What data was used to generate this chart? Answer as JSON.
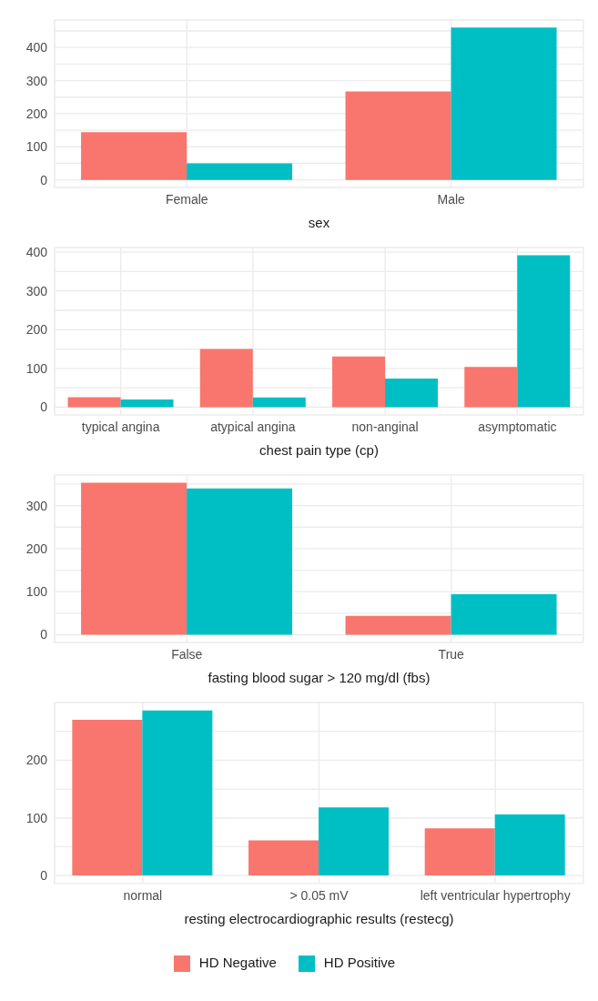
{
  "chart_data": [
    {
      "type": "bar",
      "xlabel": "sex",
      "categories": [
        "Female",
        "Male"
      ],
      "series": [
        {
          "color": "#f8766d",
          "values": [
            144,
            267
          ]
        },
        {
          "color": "#00bfc4",
          "values": [
            50,
            460
          ]
        }
      ],
      "ylim": [
        -23,
        483
      ],
      "yticks": [
        0,
        {
          "value": 50,
          "label": null
        },
        100,
        {
          "value": 150,
          "label": null
        },
        200,
        {
          "value": 250,
          "label": null
        },
        300,
        {
          "value": 350,
          "label": null
        },
        400,
        {
          "value": 450,
          "label": null
        }
      ],
      "grid": true,
      "legend": false
    },
    {
      "type": "bar",
      "xlabel": "chest pain type (cp)",
      "categories": [
        "typical angina",
        "atypical angina",
        "non-anginal",
        "asymptomatic"
      ],
      "series": [
        {
          "color": "#f8766d",
          "values": [
            26,
            150,
            131,
            104
          ]
        },
        {
          "color": "#00bfc4",
          "values": [
            20,
            25,
            74,
            392
          ]
        }
      ],
      "ylim": [
        -20,
        412
      ],
      "yticks": [
        0,
        {
          "value": 50,
          "label": null
        },
        100,
        {
          "value": 150,
          "label": null
        },
        200,
        {
          "value": 250,
          "label": null
        },
        300,
        {
          "value": 350,
          "label": null
        },
        400
      ],
      "grid": true,
      "legend": false
    },
    {
      "type": "bar",
      "xlabel": "fasting blood sugar > 120 mg/dl (fbs)",
      "categories": [
        "False",
        "True"
      ],
      "series": [
        {
          "color": "#f8766d",
          "values": [
            353,
            44
          ]
        },
        {
          "color": "#00bfc4",
          "values": [
            340,
            94
          ]
        }
      ],
      "ylim": [
        -18,
        371
      ],
      "yticks": [
        0,
        {
          "value": 50,
          "label": null
        },
        100,
        {
          "value": 150,
          "label": null
        },
        200,
        {
          "value": 250,
          "label": null
        },
        300,
        {
          "value": 350,
          "label": null
        }
      ],
      "grid": true,
      "legend": false
    },
    {
      "type": "bar",
      "xlabel": "resting electrocardiographic results (restecg)",
      "categories": [
        "normal",
        "> 0.05 mV",
        "left ventricular hypertrophy"
      ],
      "series": [
        {
          "name": "HD Negative",
          "color": "#f8766d",
          "values": [
            270,
            61,
            82
          ]
        },
        {
          "name": "HD Positive",
          "color": "#00bfc4",
          "values": [
            286,
            118,
            106
          ]
        }
      ],
      "ylim": [
        -14,
        300
      ],
      "yticks": [
        0,
        {
          "value": 50,
          "label": null
        },
        100,
        {
          "value": 150,
          "label": null
        },
        200,
        {
          "value": 250,
          "label": null
        }
      ],
      "grid": true,
      "legend": "bottom"
    }
  ]
}
